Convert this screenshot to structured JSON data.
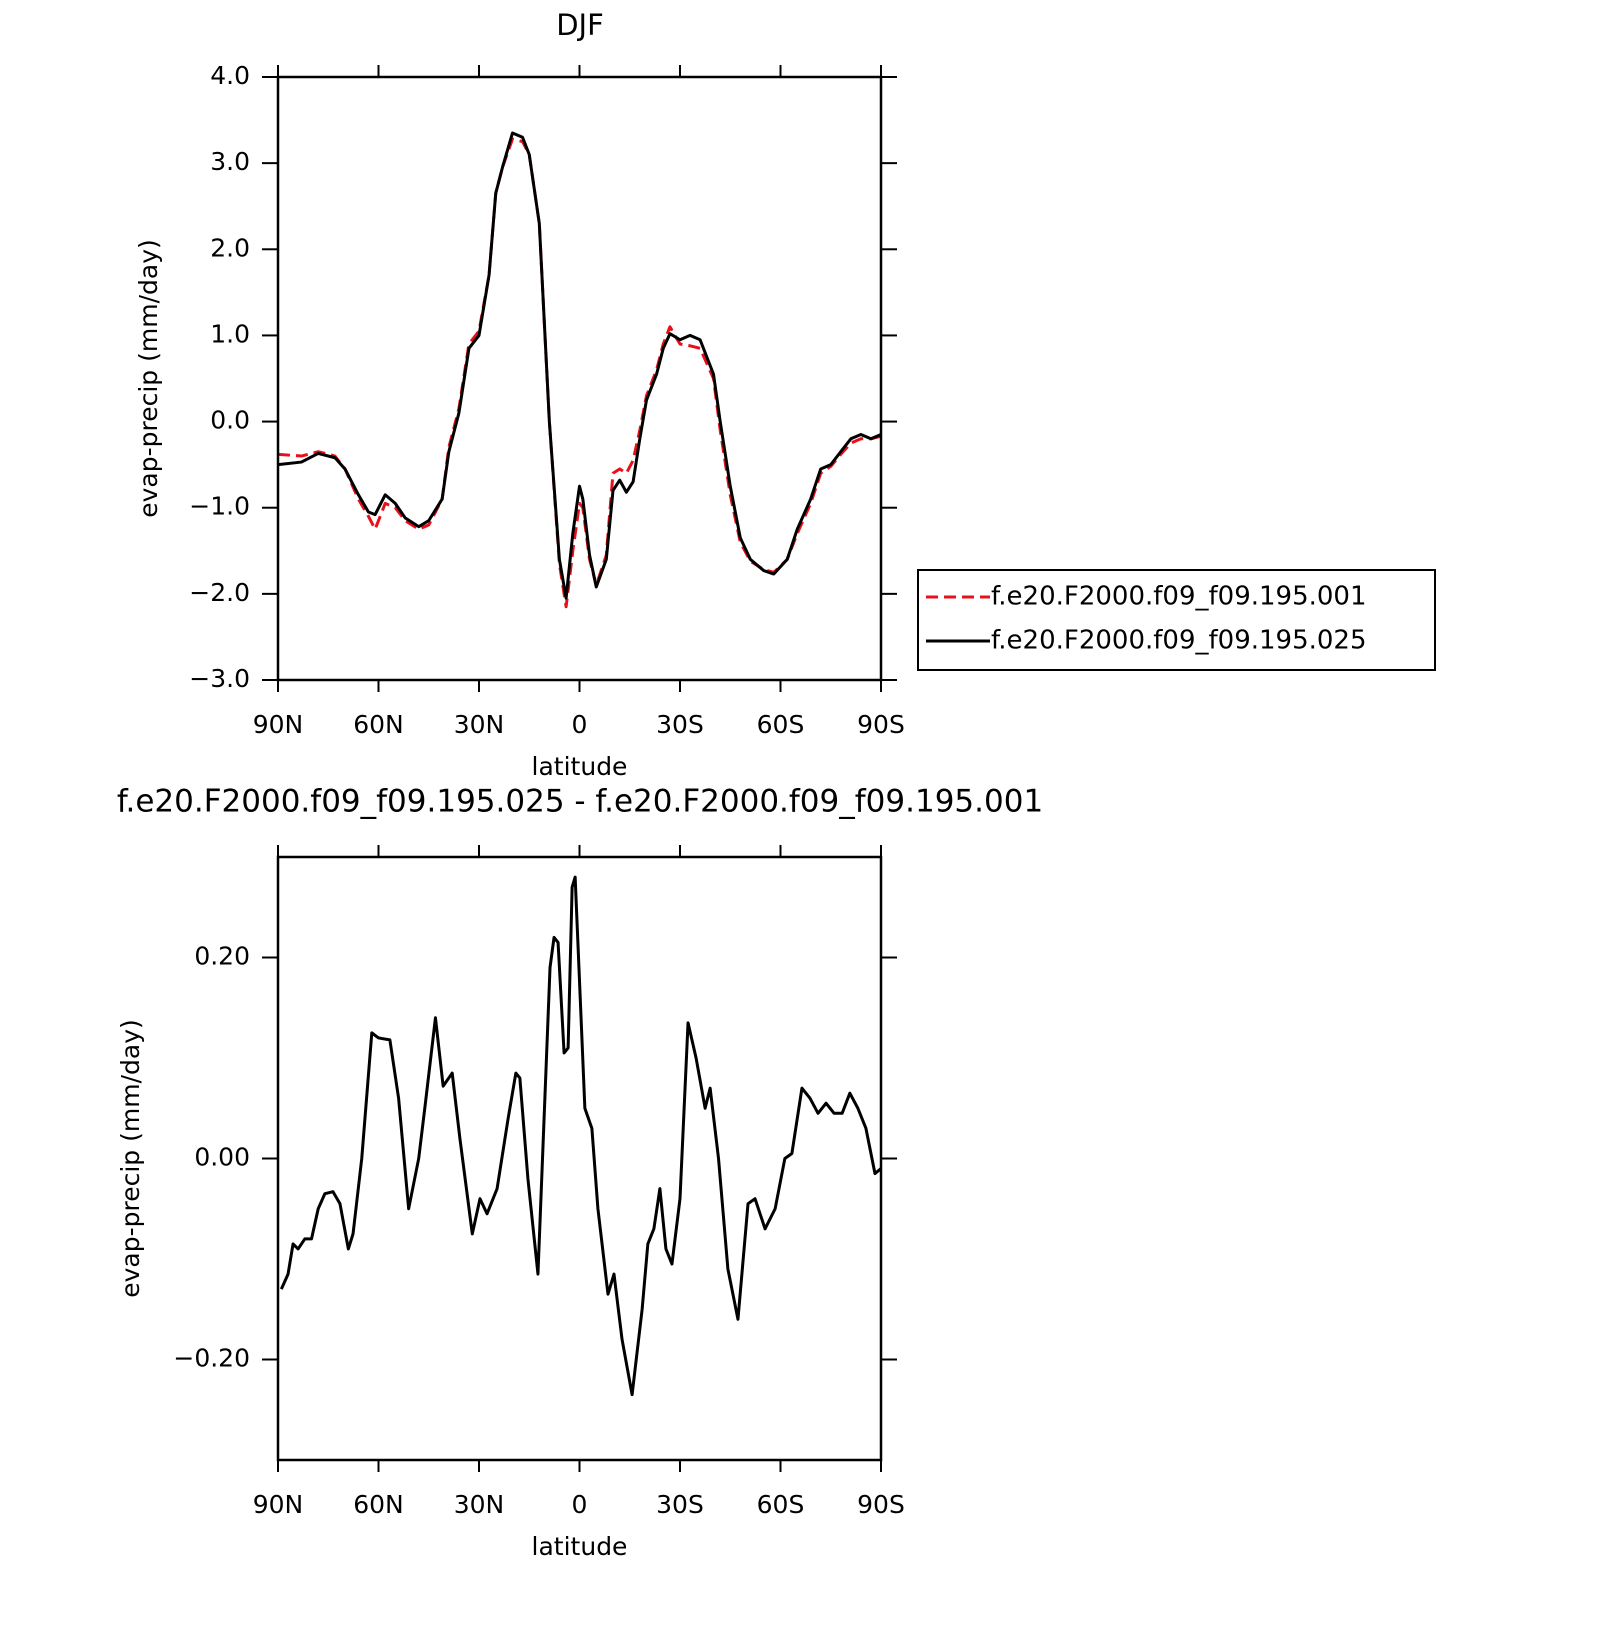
{
  "chart_data": [
    {
      "type": "line",
      "title": "DJF",
      "xlabel": "latitude",
      "ylabel": "evap-precip (mm/day)",
      "x": [
        90,
        83,
        78,
        73,
        70,
        66,
        63,
        61,
        58,
        55,
        52,
        48,
        45,
        41,
        39,
        36,
        33,
        30,
        27,
        25,
        23,
        20,
        17,
        15,
        12,
        9,
        6,
        4,
        2,
        0,
        -1,
        -3,
        -5,
        -8,
        -10,
        -12,
        -14,
        -16,
        -18,
        -20,
        -23,
        -25,
        -27,
        -30,
        -33,
        -36,
        -40,
        -42,
        -45,
        -48,
        -51,
        -55,
        -58,
        -62,
        -65,
        -69,
        -72,
        -75,
        -78,
        -81,
        -84,
        -87,
        -90
      ],
      "series": [
        {
          "name": "f.e20.F2000.f09_f09.195.001",
          "color": "#e8101a",
          "line_style": "dashed",
          "values": [
            -0.38,
            -0.4,
            -0.35,
            -0.4,
            -0.55,
            -0.9,
            -1.1,
            -1.25,
            -0.95,
            -1.0,
            -1.15,
            -1.25,
            -1.2,
            -0.9,
            -0.3,
            0.15,
            0.9,
            1.05,
            1.7,
            2.65,
            2.95,
            3.28,
            3.25,
            3.1,
            2.3,
            0.0,
            -1.65,
            -2.15,
            -1.5,
            -0.95,
            -1.0,
            -1.6,
            -1.9,
            -1.55,
            -0.6,
            -0.55,
            -0.6,
            -0.45,
            -0.1,
            0.3,
            0.6,
            0.9,
            1.1,
            0.9,
            0.88,
            0.85,
            0.5,
            -0.1,
            -0.85,
            -1.4,
            -1.62,
            -1.72,
            -1.75,
            -1.6,
            -1.3,
            -0.95,
            -0.6,
            -0.52,
            -0.38,
            -0.25,
            -0.2,
            -0.2,
            -0.17
          ]
        },
        {
          "name": "f.e20.F2000.f09_f09.195.025",
          "color": "#000000",
          "line_style": "solid",
          "values": [
            -0.5,
            -0.47,
            -0.37,
            -0.42,
            -0.55,
            -0.85,
            -1.05,
            -1.08,
            -0.85,
            -0.95,
            -1.12,
            -1.22,
            -1.15,
            -0.9,
            -0.35,
            0.1,
            0.85,
            1.0,
            1.7,
            2.65,
            2.95,
            3.35,
            3.3,
            3.1,
            2.3,
            0.0,
            -1.6,
            -2.05,
            -1.3,
            -0.75,
            -0.9,
            -1.55,
            -1.92,
            -1.6,
            -0.8,
            -0.68,
            -0.82,
            -0.7,
            -0.2,
            0.25,
            0.55,
            0.85,
            1.02,
            0.95,
            1.0,
            0.95,
            0.55,
            0.0,
            -0.75,
            -1.35,
            -1.6,
            -1.73,
            -1.77,
            -1.6,
            -1.25,
            -0.9,
            -0.55,
            -0.5,
            -0.35,
            -0.2,
            -0.15,
            -0.2,
            -0.15
          ]
        }
      ],
      "xlim": [
        90,
        -90
      ],
      "xticks": [
        {
          "value": 90,
          "label": "90N"
        },
        {
          "value": 60,
          "label": "60N"
        },
        {
          "value": 30,
          "label": "30N"
        },
        0,
        {
          "value": -30,
          "label": "30S"
        },
        {
          "value": -60,
          "label": "60S"
        },
        {
          "value": -90,
          "label": "90S"
        }
      ],
      "ylim": [
        -3,
        4
      ],
      "yticks": [
        {
          "value": 4,
          "label": "4.0"
        },
        {
          "value": 3,
          "label": "3.0"
        },
        {
          "value": 2,
          "label": "2.0"
        },
        {
          "value": 1,
          "label": "1.0"
        },
        {
          "value": 0,
          "label": "0.0"
        },
        {
          "value": -1,
          "label": "−1.0"
        },
        {
          "value": -2,
          "label": "−2.0"
        },
        {
          "value": -3,
          "label": "−3.0"
        }
      ],
      "legend": "right"
    },
    {
      "type": "line",
      "title": "f.e20.F2000.f09_f09.195.025 - f.e20.F2000.f09_f09.195.001",
      "xlabel": "latitude",
      "ylabel": "evap-precip (mm/day)",
      "x": [
        89,
        87,
        85.5,
        84,
        82,
        80,
        78,
        76,
        73.6,
        71.5,
        69,
        67.6,
        65,
        62,
        60,
        56.6,
        54,
        51,
        48,
        46,
        43,
        40.7,
        38,
        35.7,
        32,
        29.7,
        27.6,
        24.6,
        21.3,
        19,
        17.8,
        15.4,
        12.4,
        8.8,
        7.6,
        6.4,
        4.6,
        3.4,
        2.2,
        1.3,
        -1.6,
        -3.7,
        -5.5,
        -8.5,
        -10.3,
        -12.7,
        -15.7,
        -18.7,
        -20.4,
        -22.2,
        -24,
        -25.8,
        -27.6,
        -30,
        -32.4,
        -34.8,
        -37.5,
        -39,
        -41.5,
        -44.3,
        -47.3,
        -50.3,
        -52.4,
        -55.4,
        -58.4,
        -61.3,
        -63.4,
        -66.4,
        -68.8,
        -71.2,
        -73.6,
        -76,
        -78.4,
        -80.7,
        -83.1,
        -85.5,
        -88.2,
        -90
      ],
      "series": [
        {
          "color": "#000000",
          "line_style": "solid",
          "values": [
            -0.13,
            -0.115,
            -0.085,
            -0.09,
            -0.08,
            -0.08,
            -0.05,
            -0.035,
            -0.033,
            -0.045,
            -0.09,
            -0.075,
            0.0,
            0.125,
            0.12,
            0.118,
            0.06,
            -0.05,
            0.0,
            0.055,
            0.14,
            0.072,
            0.085,
            0.02,
            -0.075,
            -0.04,
            -0.055,
            -0.03,
            0.04,
            0.085,
            0.08,
            -0.02,
            -0.115,
            0.19,
            0.22,
            0.215,
            0.105,
            0.11,
            0.27,
            0.28,
            0.05,
            0.03,
            -0.05,
            -0.135,
            -0.115,
            -0.18,
            -0.235,
            -0.15,
            -0.085,
            -0.07,
            -0.03,
            -0.09,
            -0.105,
            -0.04,
            0.135,
            0.1,
            0.05,
            0.07,
            0.0,
            -0.11,
            -0.16,
            -0.045,
            -0.04,
            -0.07,
            -0.05,
            0.0,
            0.005,
            0.07,
            0.06,
            0.045,
            0.055,
            0.045,
            0.045,
            0.065,
            0.05,
            0.03,
            -0.015,
            -0.01
          ]
        }
      ],
      "xlim": [
        90,
        -90
      ],
      "xticks": [
        {
          "value": 90,
          "label": "90N"
        },
        {
          "value": 60,
          "label": "60N"
        },
        {
          "value": 30,
          "label": "30N"
        },
        0,
        {
          "value": -30,
          "label": "30S"
        },
        {
          "value": -60,
          "label": "60S"
        },
        {
          "value": -90,
          "label": "90S"
        }
      ],
      "ylim": [
        -0.3,
        0.3
      ],
      "yticks": [
        {
          "value": 0.2,
          "label": "0.20"
        },
        {
          "value": 0,
          "label": "0.00"
        },
        {
          "value": -0.2,
          "label": "−0.20"
        }
      ]
    }
  ]
}
